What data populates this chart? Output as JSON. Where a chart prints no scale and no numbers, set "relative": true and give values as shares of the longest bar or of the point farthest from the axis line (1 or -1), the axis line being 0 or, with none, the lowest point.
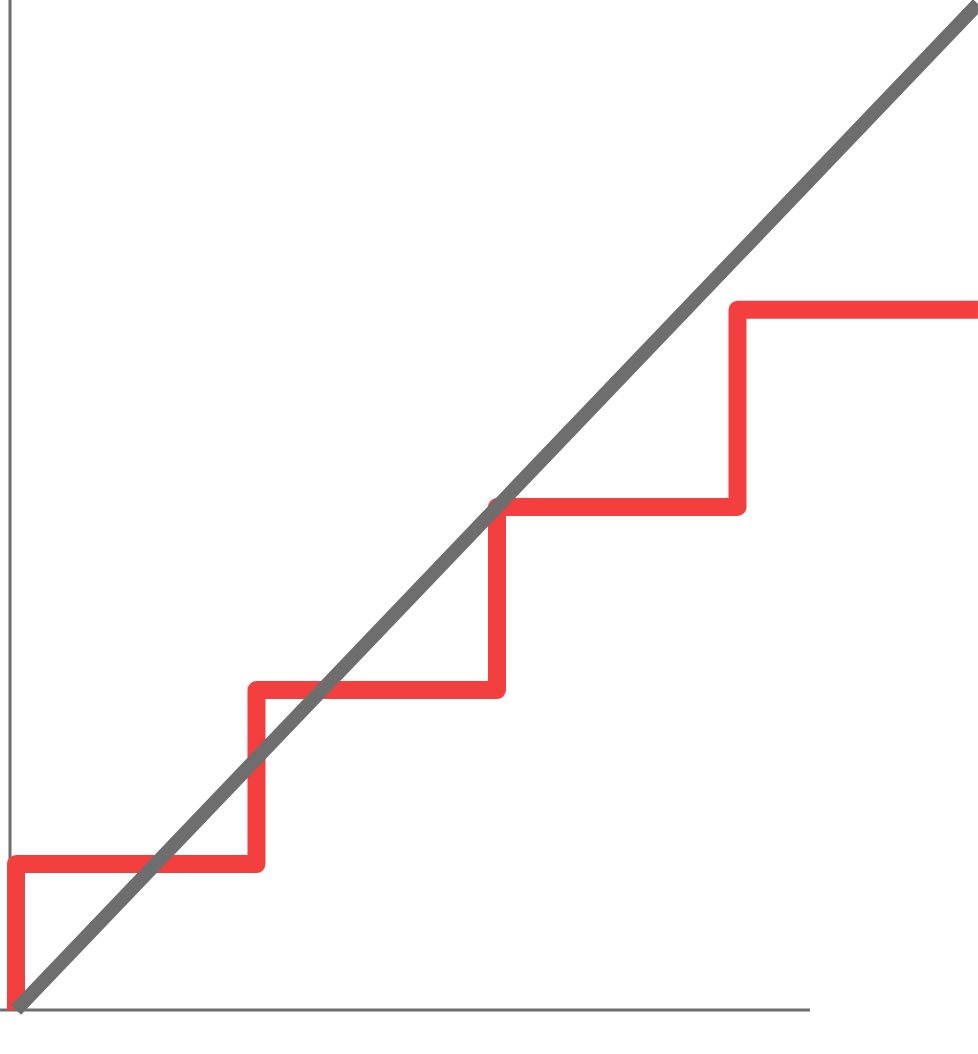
{
  "chart_data": {
    "type": "step",
    "relative": true,
    "categories": [
      null,
      null,
      null,
      null,
      null
    ],
    "marker": "none",
    "line_style": "solid",
    "series": [
      {
        "type": "step",
        "color": "#f43f3f",
        "values": [
          0,
          0.145,
          0.318,
          0.5,
          0.696
        ]
      },
      {
        "type": "line",
        "color": "#6e6e6e",
        "values": [
          0,
          0.25,
          0.5,
          0.75,
          1
        ]
      }
    ]
  }
}
